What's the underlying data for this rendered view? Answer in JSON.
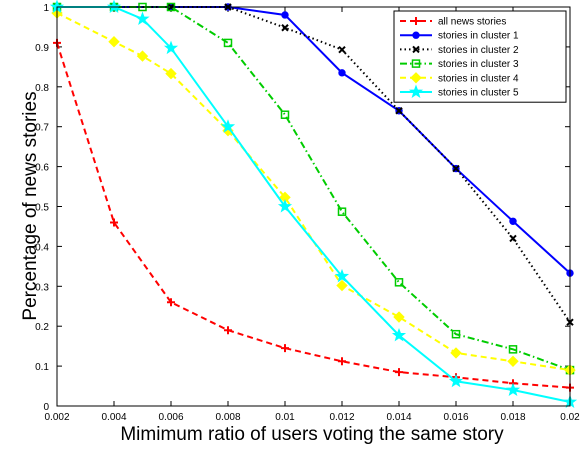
{
  "chart_data": {
    "type": "line",
    "title": "",
    "xlabel": "Mimimum ratio of users voting the same story",
    "ylabel": "Percentage of news stories",
    "xlim": [
      0.002,
      0.02
    ],
    "ylim": [
      0,
      1
    ],
    "x_ticks": [
      0.002,
      0.004,
      0.006,
      0.008,
      0.01,
      0.012,
      0.014,
      0.016,
      0.018,
      0.02
    ],
    "x_tick_labels": [
      "0.002",
      "0.004",
      "0.006",
      "0.008",
      "0.01",
      "0.012",
      "0.014",
      "0.016",
      "0.018",
      "0.02"
    ],
    "y_ticks": [
      0,
      0.1,
      0.2,
      0.3,
      0.4,
      0.5,
      0.6,
      0.7,
      0.8,
      0.9,
      1
    ],
    "y_tick_labels": [
      "0",
      "0.1",
      "0.2",
      "0.3",
      "0.4",
      "0.5",
      "0.6",
      "0.7",
      "0.8",
      "0.9",
      "1"
    ],
    "grid": false,
    "legend_position": "top-right",
    "series": [
      {
        "name": "all news stories",
        "color": "#ff0000",
        "dash": "dashed",
        "marker": "plus",
        "points": [
          [
            0.002,
            0.91
          ],
          [
            0.004,
            0.46
          ],
          [
            0.006,
            0.26
          ],
          [
            0.008,
            0.19
          ],
          [
            0.01,
            0.145
          ],
          [
            0.012,
            0.112
          ],
          [
            0.014,
            0.085
          ],
          [
            0.016,
            0.072
          ],
          [
            0.018,
            0.057
          ],
          [
            0.02,
            0.046
          ]
        ]
      },
      {
        "name": "stories in cluster 1",
        "color": "#0000ff",
        "dash": "solid",
        "marker": "dot",
        "points": [
          [
            0.002,
            1.0
          ],
          [
            0.004,
            1.0
          ],
          [
            0.006,
            1.0
          ],
          [
            0.008,
            1.0
          ],
          [
            0.01,
            0.98
          ],
          [
            0.012,
            0.835
          ],
          [
            0.014,
            0.74
          ],
          [
            0.016,
            0.595
          ],
          [
            0.018,
            0.463
          ],
          [
            0.02,
            0.333
          ]
        ]
      },
      {
        "name": "stories in cluster 2",
        "color": "#000000",
        "dash": "dotted",
        "marker": "x",
        "points": [
          [
            0.002,
            1.0
          ],
          [
            0.004,
            1.0
          ],
          [
            0.006,
            1.0
          ],
          [
            0.008,
            1.0
          ],
          [
            0.01,
            0.948
          ],
          [
            0.012,
            0.893
          ],
          [
            0.014,
            0.74
          ],
          [
            0.016,
            0.595
          ],
          [
            0.018,
            0.42
          ],
          [
            0.02,
            0.21
          ]
        ]
      },
      {
        "name": "stories in cluster 3",
        "color": "#00cc00",
        "dash": "dashdot",
        "marker": "square",
        "points": [
          [
            0.002,
            1.0
          ],
          [
            0.004,
            1.0
          ],
          [
            0.005,
            1.0
          ],
          [
            0.006,
            1.0
          ],
          [
            0.008,
            0.91
          ],
          [
            0.01,
            0.73
          ],
          [
            0.012,
            0.487
          ],
          [
            0.014,
            0.31
          ],
          [
            0.016,
            0.18
          ],
          [
            0.018,
            0.142
          ],
          [
            0.02,
            0.09
          ]
        ]
      },
      {
        "name": "stories in cluster 4",
        "color": "#ffff00",
        "dash": "dashed",
        "marker": "diamond",
        "points": [
          [
            0.002,
            0.985
          ],
          [
            0.004,
            0.913
          ],
          [
            0.005,
            0.877
          ],
          [
            0.006,
            0.833
          ],
          [
            0.008,
            0.69
          ],
          [
            0.01,
            0.523
          ],
          [
            0.012,
            0.302
          ],
          [
            0.014,
            0.223
          ],
          [
            0.016,
            0.133
          ],
          [
            0.018,
            0.112
          ],
          [
            0.02,
            0.09
          ]
        ]
      },
      {
        "name": "stories in cluster 5",
        "color": "#00ffff",
        "dash": "solid",
        "marker": "star",
        "points": [
          [
            0.002,
            1.0
          ],
          [
            0.004,
            1.0
          ],
          [
            0.005,
            0.97
          ],
          [
            0.006,
            0.897
          ],
          [
            0.008,
            0.7
          ],
          [
            0.01,
            0.5
          ],
          [
            0.012,
            0.325
          ],
          [
            0.014,
            0.177
          ],
          [
            0.016,
            0.062
          ],
          [
            0.018,
            0.04
          ],
          [
            0.02,
            0.01
          ]
        ]
      }
    ]
  }
}
